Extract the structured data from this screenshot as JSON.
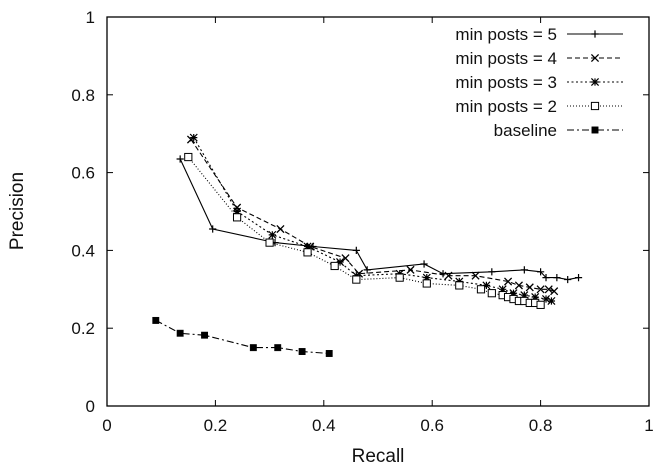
{
  "chart_data": {
    "type": "line",
    "title": "",
    "xlabel": "Recall",
    "ylabel": "Precision",
    "xlim": [
      0,
      1
    ],
    "ylim": [
      0,
      1
    ],
    "xticks": [
      "0",
      "0.2",
      "0.4",
      "0.6",
      "0.8",
      "1"
    ],
    "yticks": [
      "0",
      "0.2",
      "0.4",
      "0.6",
      "0.8",
      "1"
    ],
    "grid": false,
    "legend_position": "top-right",
    "series": [
      {
        "name": "min posts = 5",
        "marker": "plus",
        "dash": "solid",
        "x": [
          0.135,
          0.195,
          0.31,
          0.38,
          0.46,
          0.48,
          0.585,
          0.62,
          0.71,
          0.77,
          0.8,
          0.81,
          0.83,
          0.85,
          0.87
        ],
        "y": [
          0.635,
          0.455,
          0.42,
          0.41,
          0.4,
          0.35,
          0.365,
          0.34,
          0.345,
          0.35,
          0.345,
          0.33,
          0.33,
          0.325,
          0.33
        ]
      },
      {
        "name": "min posts = 4",
        "marker": "x",
        "dash": "dashed",
        "x": [
          0.155,
          0.24,
          0.32,
          0.375,
          0.44,
          0.465,
          0.56,
          0.63,
          0.68,
          0.74,
          0.76,
          0.78,
          0.8,
          0.815,
          0.825
        ],
        "y": [
          0.685,
          0.51,
          0.455,
          0.41,
          0.38,
          0.34,
          0.35,
          0.335,
          0.335,
          0.32,
          0.31,
          0.305,
          0.3,
          0.3,
          0.295
        ]
      },
      {
        "name": "min posts = 3",
        "marker": "star",
        "dash": "dotted",
        "x": [
          0.16,
          0.24,
          0.305,
          0.37,
          0.43,
          0.46,
          0.54,
          0.59,
          0.65,
          0.7,
          0.73,
          0.75,
          0.77,
          0.79,
          0.81,
          0.82
        ],
        "y": [
          0.69,
          0.5,
          0.44,
          0.41,
          0.37,
          0.335,
          0.34,
          0.33,
          0.32,
          0.31,
          0.3,
          0.29,
          0.285,
          0.28,
          0.275,
          0.27
        ]
      },
      {
        "name": "min posts = 2",
        "marker": "open-square",
        "dash": "fine-dotted",
        "x": [
          0.15,
          0.24,
          0.3,
          0.37,
          0.42,
          0.46,
          0.54,
          0.59,
          0.65,
          0.69,
          0.71,
          0.73,
          0.74,
          0.75,
          0.76,
          0.77,
          0.78,
          0.79,
          0.8
        ],
        "y": [
          0.64,
          0.485,
          0.42,
          0.395,
          0.36,
          0.325,
          0.33,
          0.315,
          0.31,
          0.3,
          0.29,
          0.285,
          0.28,
          0.275,
          0.27,
          0.27,
          0.265,
          0.265,
          0.26
        ]
      },
      {
        "name": "baseline",
        "marker": "filled-square",
        "dash": "dash-dot",
        "x": [
          0.09,
          0.135,
          0.18,
          0.27,
          0.315,
          0.36,
          0.41
        ],
        "y": [
          0.22,
          0.187,
          0.182,
          0.15,
          0.15,
          0.14,
          0.135
        ]
      }
    ]
  }
}
